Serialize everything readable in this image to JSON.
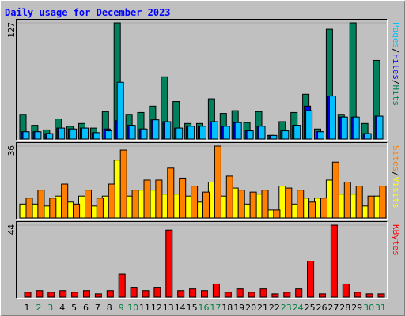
{
  "chart_data": [
    {
      "type": "bar",
      "title": "Daily usage for December 2023",
      "ylim": [
        0,
        127
      ],
      "yticks": [
        127
      ],
      "legend_separator": "/",
      "series": [
        {
          "name": "Hits",
          "color": "#00805c",
          "values": [
            27,
            15,
            10,
            22,
            14,
            17,
            12,
            30,
            127,
            27,
            29,
            36,
            68,
            41,
            17,
            17,
            44,
            28,
            31,
            18,
            30,
            4,
            19,
            29,
            49,
            11,
            120,
            27,
            127,
            17,
            86
          ]
        },
        {
          "name": "Files",
          "color": "#0000ff",
          "values": [
            8,
            8,
            6,
            12,
            11,
            12,
            7,
            11,
            20,
            15,
            11,
            21,
            19,
            12,
            14,
            14,
            19,
            14,
            18,
            9,
            14,
            4,
            9,
            15,
            36,
            8,
            47,
            24,
            24,
            6,
            25
          ]
        },
        {
          "name": "Pages",
          "color": "#00c0ff",
          "values": [
            8,
            8,
            6,
            12,
            11,
            12,
            7,
            9,
            62,
            15,
            11,
            21,
            19,
            12,
            14,
            14,
            19,
            14,
            18,
            9,
            14,
            4,
            9,
            15,
            31,
            8,
            47,
            24,
            24,
            6,
            25
          ]
        }
      ]
    },
    {
      "type": "bar",
      "ylim": [
        0,
        36
      ],
      "yticks": [
        36
      ],
      "legend_separator": "/",
      "series": [
        {
          "name": "Visits",
          "color": "#ffff00",
          "values": [
            7,
            7,
            6,
            11,
            8,
            11,
            6,
            11,
            29,
            11,
            14,
            14,
            12,
            12,
            11,
            8,
            18,
            11,
            15,
            7,
            12,
            4,
            16,
            7,
            10,
            10,
            19,
            12,
            12,
            6,
            11
          ]
        },
        {
          "name": "Sites",
          "color": "#ff8000",
          "values": [
            10,
            14,
            10,
            17,
            7,
            14,
            10,
            17,
            34,
            14,
            19,
            19,
            25,
            20,
            16,
            13,
            36,
            21,
            14,
            13,
            14,
            4,
            15,
            14,
            8,
            10,
            28,
            18,
            16,
            11,
            16
          ]
        }
      ]
    },
    {
      "type": "bar",
      "ylim": [
        0,
        44
      ],
      "yticks": [
        44
      ],
      "categories": [
        "1",
        "2",
        "3",
        "4",
        "5",
        "6",
        "7",
        "8",
        "9",
        "10",
        "11",
        "12",
        "13",
        "14",
        "15",
        "16",
        "17",
        "18",
        "19",
        "20",
        "21",
        "22",
        "23",
        "24",
        "25",
        "26",
        "27",
        "28",
        "29",
        "30",
        "31"
      ],
      "category_colors": [
        "#000000",
        "#008040",
        "#008040",
        "#000000",
        "#000000",
        "#000000",
        "#000000",
        "#000000",
        "#008040",
        "#008040",
        "#000000",
        "#000000",
        "#000000",
        "#000000",
        "#000000",
        "#008040",
        "#008040",
        "#000000",
        "#000000",
        "#000000",
        "#000000",
        "#000000",
        "#008040",
        "#008040",
        "#000000",
        "#000000",
        "#000000",
        "#000000",
        "#000000",
        "#008040",
        "#008040"
      ],
      "series": [
        {
          "name": "KBytes",
          "color": "#ff0000",
          "values": [
            3,
            4,
            3,
            4,
            3,
            4,
            2,
            4,
            14,
            6,
            4,
            6,
            41,
            4,
            5,
            4,
            8,
            3,
            5,
            3,
            5,
            2,
            3,
            5,
            22,
            2,
            44,
            8,
            3,
            2,
            2
          ]
        }
      ]
    }
  ]
}
